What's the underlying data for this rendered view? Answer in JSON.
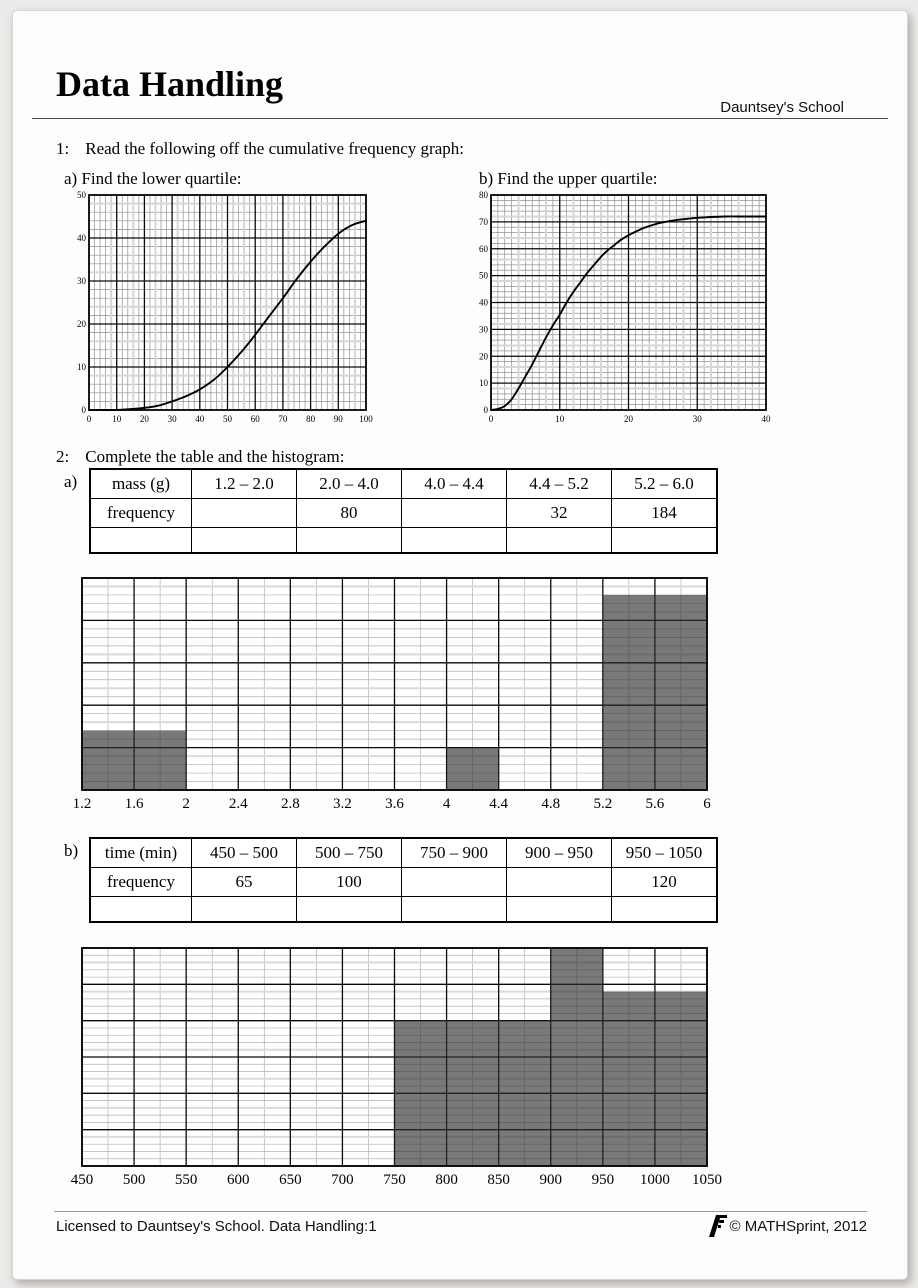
{
  "page": {
    "title": "Data Handling",
    "school": "Dauntsey's School",
    "footer_left": "Licensed to Dauntsey's School. Data Handling:1",
    "footer_right": "© MATHSprint, 2012"
  },
  "q1": {
    "number": "1:",
    "prompt": "Read the following off the cumulative frequency graph:",
    "part_a_label": "a) Find the lower quartile:",
    "part_b_label": "b) Find the upper quartile:"
  },
  "q2": {
    "number": "2:",
    "prompt": "Complete the table and the histogram:",
    "a_marker": "a)",
    "b_marker": "b)",
    "table_a": {
      "rows": [
        [
          "mass (g)",
          "1.2 – 2.0",
          "2.0 – 4.0",
          "4.0 – 4.4",
          "4.4 – 5.2",
          "5.2 – 6.0"
        ],
        [
          "frequency",
          "",
          "80",
          "",
          "32",
          "184"
        ],
        [
          "",
          "",
          "",
          "",
          "",
          ""
        ]
      ]
    },
    "table_b": {
      "rows": [
        [
          "time (min)",
          "450 – 500",
          "500 – 750",
          "750 – 900",
          "900 – 950",
          "950 – 1050"
        ],
        [
          "frequency",
          "65",
          "100",
          "",
          "",
          "120"
        ],
        [
          "",
          "",
          "",
          "",
          "",
          ""
        ]
      ]
    }
  },
  "chart_data": [
    {
      "id": "cf_a",
      "type": "line",
      "title": "a) Find the lower quartile:",
      "x_range": [
        0,
        100
      ],
      "y_range": [
        0,
        50
      ],
      "x_fine": 2,
      "y_fine": 2,
      "x_major": 10,
      "y_major": 10,
      "x_ticks": [
        0,
        10,
        20,
        30,
        40,
        50,
        60,
        70,
        80,
        90,
        100
      ],
      "y_ticks": [
        0,
        10,
        20,
        30,
        40,
        50
      ],
      "grid": "fine+major, engineering graph paper",
      "legend": "none",
      "points": [
        [
          0,
          0
        ],
        [
          10,
          0
        ],
        [
          15,
          0.2
        ],
        [
          20,
          0.5
        ],
        [
          25,
          1
        ],
        [
          30,
          2
        ],
        [
          35,
          3.2
        ],
        [
          40,
          4.8
        ],
        [
          45,
          7
        ],
        [
          50,
          10
        ],
        [
          55,
          13.5
        ],
        [
          60,
          17.5
        ],
        [
          65,
          21.8
        ],
        [
          70,
          26
        ],
        [
          75,
          30.5
        ],
        [
          80,
          34.5
        ],
        [
          85,
          38
        ],
        [
          90,
          41
        ],
        [
          95,
          43
        ],
        [
          100,
          44
        ]
      ]
    },
    {
      "id": "cf_b",
      "type": "line",
      "title": "b) Find the upper quartile:",
      "x_range": [
        0,
        40
      ],
      "y_range": [
        0,
        80
      ],
      "x_fine": 1,
      "y_fine": 2,
      "x_major": 10,
      "y_major": 10,
      "x_ticks": [
        0,
        10,
        20,
        30,
        40
      ],
      "y_ticks": [
        0,
        10,
        20,
        30,
        40,
        50,
        60,
        70,
        80
      ],
      "grid": "fine+major, engineering graph paper",
      "legend": "none",
      "points": [
        [
          0,
          0
        ],
        [
          1,
          0.4
        ],
        [
          2,
          1.5
        ],
        [
          3,
          4
        ],
        [
          4,
          8
        ],
        [
          5,
          12.5
        ],
        [
          6,
          17
        ],
        [
          7,
          22
        ],
        [
          8,
          27
        ],
        [
          9,
          31.5
        ],
        [
          10,
          35.5
        ],
        [
          11,
          40
        ],
        [
          12,
          44
        ],
        [
          13,
          47.5
        ],
        [
          14,
          51
        ],
        [
          15,
          54
        ],
        [
          16,
          57
        ],
        [
          17,
          59.5
        ],
        [
          18,
          61.5
        ],
        [
          19,
          63.5
        ],
        [
          20,
          65
        ],
        [
          22,
          67.5
        ],
        [
          24,
          69.2
        ],
        [
          26,
          70.3
        ],
        [
          28,
          71
        ],
        [
          30,
          71.5
        ],
        [
          32,
          71.8
        ],
        [
          34,
          72
        ],
        [
          36,
          72
        ],
        [
          38,
          72
        ],
        [
          40,
          72
        ]
      ]
    },
    {
      "id": "hist_a",
      "type": "bar",
      "x_range": [
        1.2,
        6
      ],
      "y_range": [
        0,
        250
      ],
      "x_fine": 0.2,
      "x_major": 0.4,
      "y_fine": 10,
      "y_major": 50,
      "x_ticks": [
        1.2,
        1.6,
        2,
        2.4,
        2.8,
        3.2,
        3.6,
        4,
        4.4,
        4.8,
        5.2,
        5.6,
        6
      ],
      "y_axis_labels": "none shown",
      "bars": [
        {
          "from": 1.2,
          "to": 2,
          "density": 70
        },
        {
          "from": 4,
          "to": 4.4,
          "density": 50
        },
        {
          "from": 5.2,
          "to": 6,
          "density": 230
        }
      ]
    },
    {
      "id": "hist_b",
      "type": "bar",
      "x_range": [
        450,
        1050
      ],
      "y_range": [
        0,
        1.5
      ],
      "x_fine": 25,
      "x_major": 50,
      "y_fine": 0.05,
      "y_major": 0.25,
      "x_ticks": [
        450,
        500,
        550,
        600,
        650,
        700,
        750,
        800,
        850,
        900,
        950,
        1000,
        1050
      ],
      "y_axis_labels": "none shown",
      "bars": [
        {
          "from": 750,
          "to": 900,
          "density": 1
        },
        {
          "from": 900,
          "to": 950,
          "density": 1.5
        },
        {
          "from": 950,
          "to": 1050,
          "density": 1.2
        }
      ]
    }
  ],
  "colors": {
    "bar_apparent": "#818181",
    "bar_fill": "rgba(45,45,45,0.64)",
    "cf_grid_fine": "#909090",
    "cf_grid_soft": "#d6d6d6",
    "hist_grid_fine": "#b2b2b2",
    "hist_grid_soft": "#dadada",
    "grid_major": "#0a0a0a",
    "curve": "#000000"
  }
}
